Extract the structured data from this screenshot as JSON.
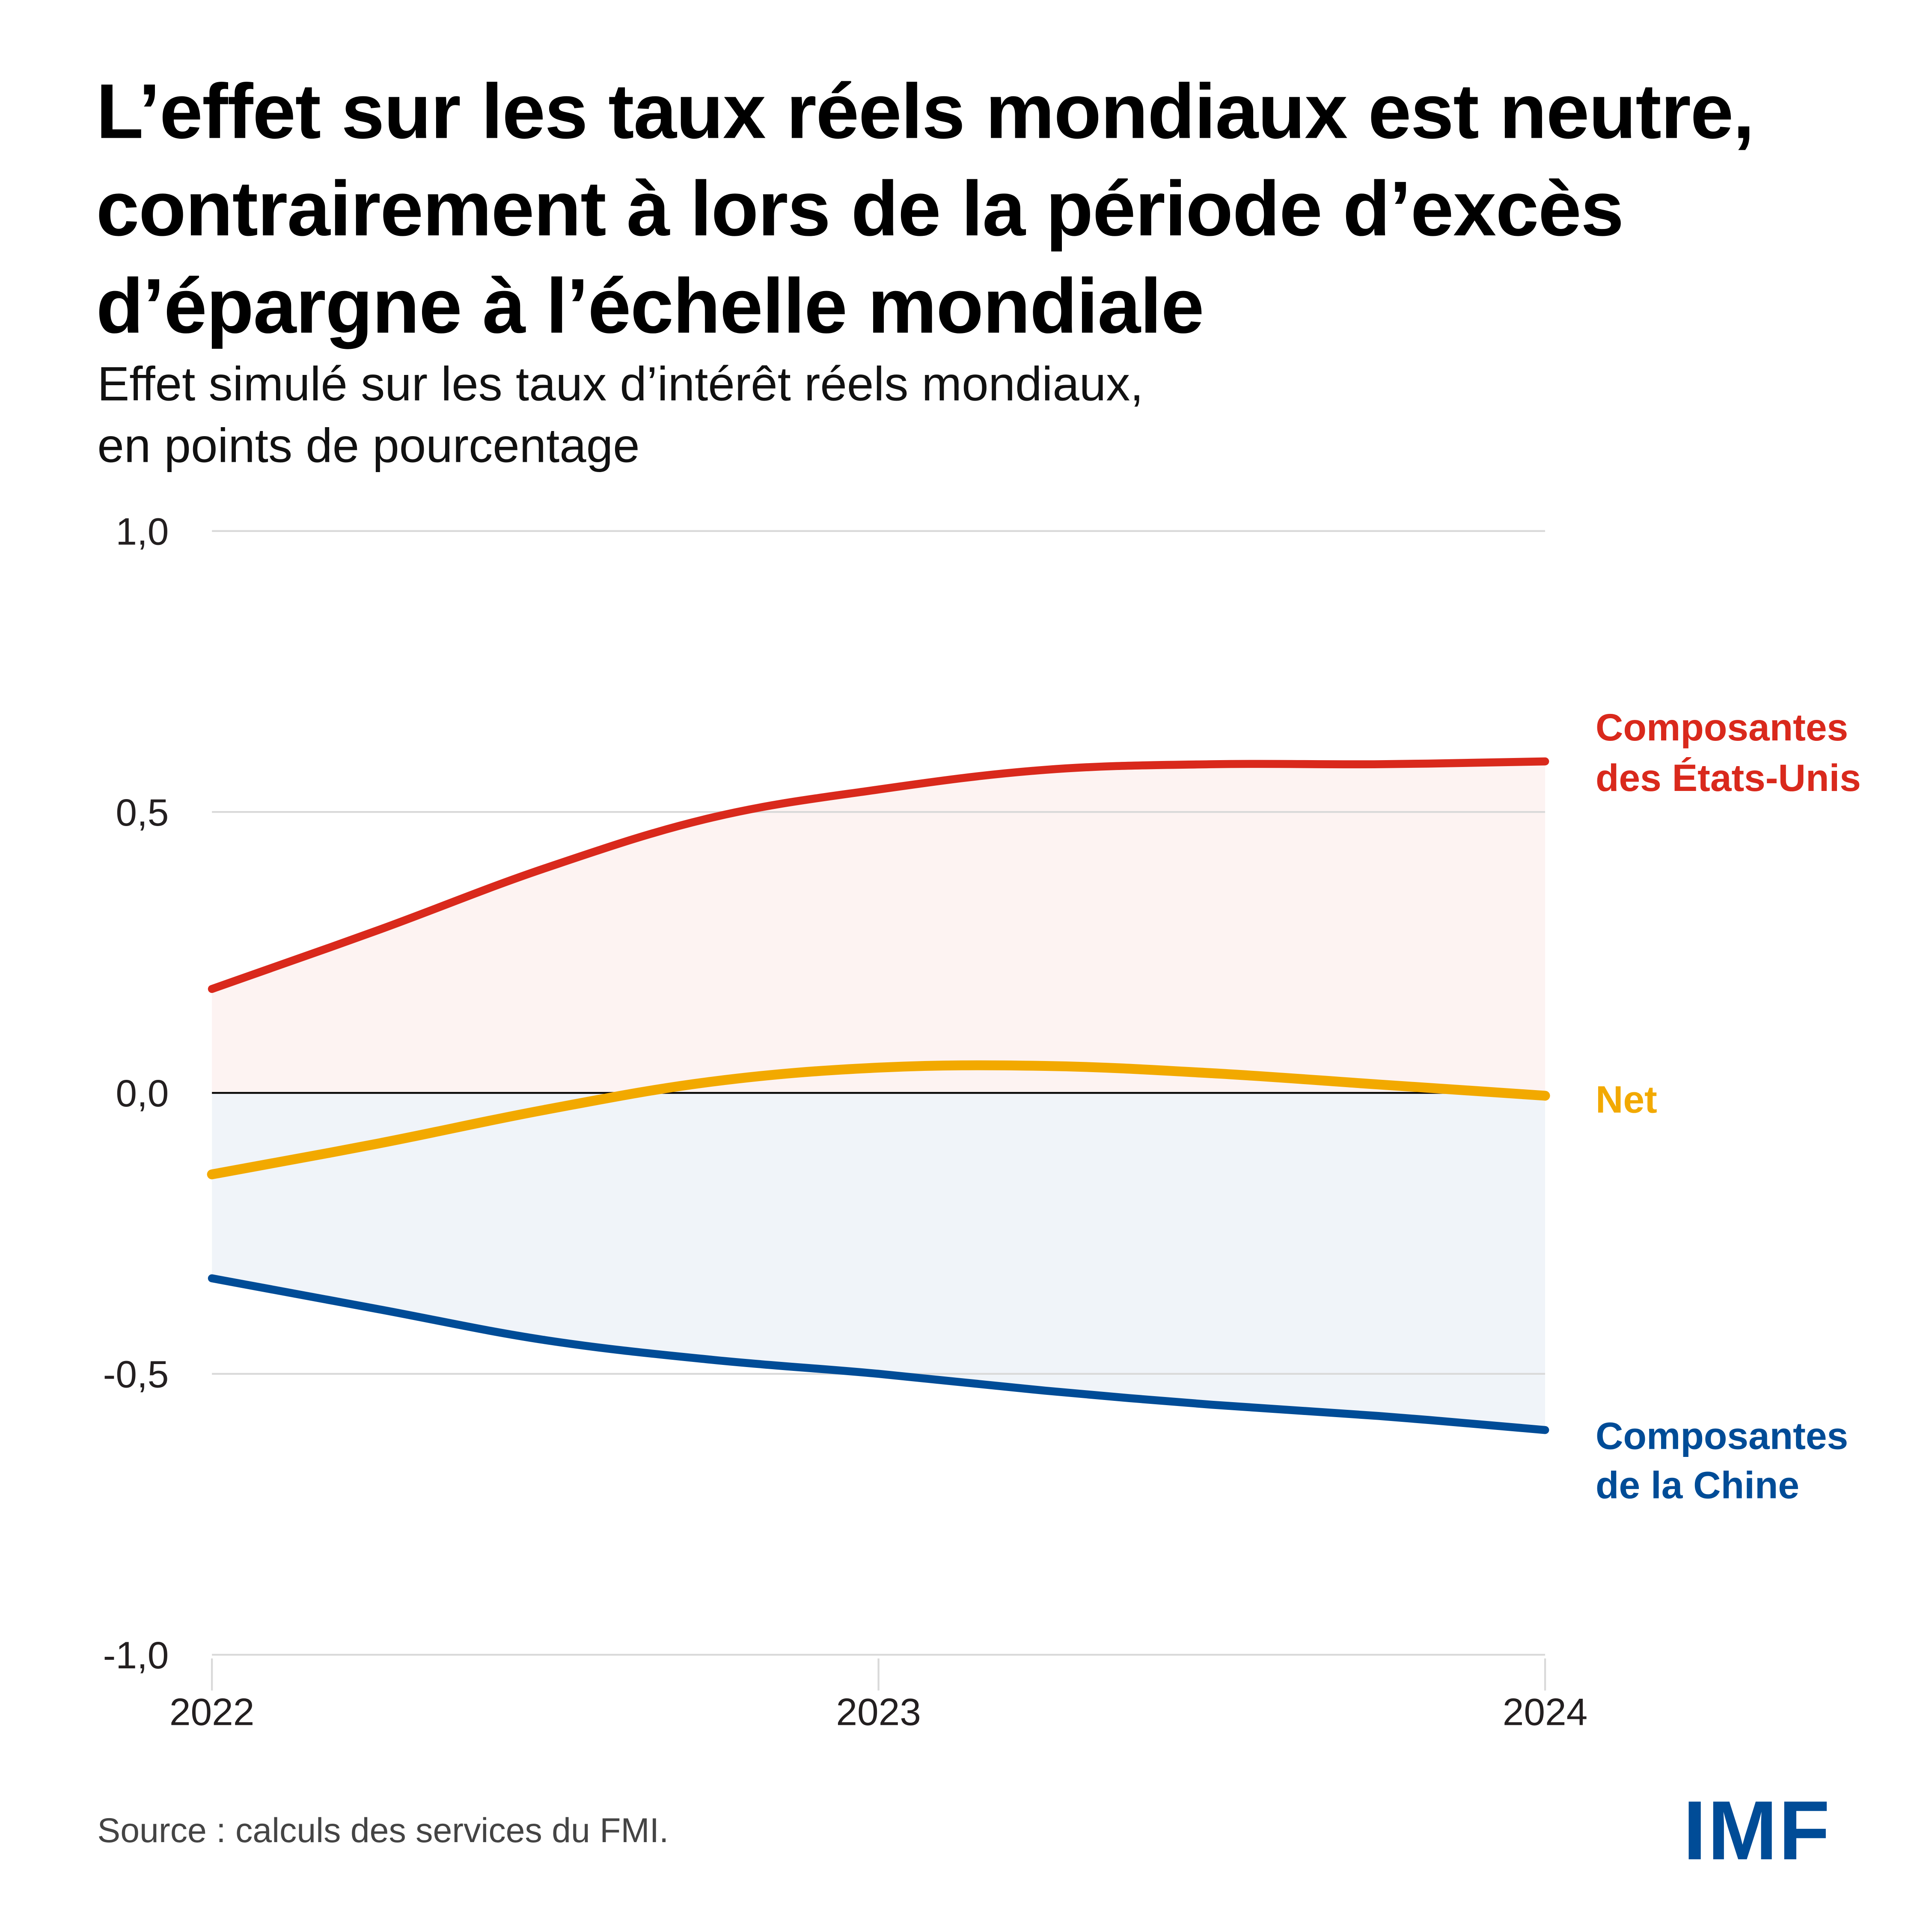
{
  "header": {
    "title_lines": [
      "L’effet sur les taux réels mondiaux est neutre,",
      "contrairement à lors de la période d’excès",
      "d’épargne à l’échelle mondiale"
    ],
    "subtitle_lines": [
      "Effet simulé sur les taux d’intérêt réels mondiaux,",
      "en points de pourcentage"
    ]
  },
  "footer": {
    "source": "Source : calculs des services du FMI.",
    "logo": "IMF"
  },
  "colors": {
    "us": "#d9291c",
    "net": "#f2a900",
    "china": "#004c97",
    "us_fill": "#fdf3f2",
    "china_fill": "#f0f4f9",
    "grid": "#d9d9d9",
    "zero_line": "#000000",
    "logo": "#004c97"
  },
  "chart_data": {
    "type": "area",
    "title": "L’effet sur les taux réels mondiaux est neutre, contrairement à lors de la période d’excès d’épargne à l’échelle mondiale",
    "subtitle": "Effet simulé sur les taux d’intérêt réels mondiaux, en points de pourcentage",
    "xlabel": "",
    "ylabel": "en points de pourcentage",
    "xlim": [
      2022,
      2024
    ],
    "ylim": [
      -1.0,
      1.0
    ],
    "x_ticks": [
      2022,
      2023,
      2024
    ],
    "x_tick_labels": [
      "2022",
      "2023",
      "2024"
    ],
    "y_ticks": [
      1.0,
      0.5,
      0.0,
      -0.5,
      -1.0
    ],
    "y_tick_labels": [
      "1,0",
      "0,5",
      "0,0",
      "-0,5",
      "-1,0"
    ],
    "grid": true,
    "legend": "inline-right",
    "x": [
      2022.0,
      2022.25,
      2022.5,
      2022.75,
      2023.0,
      2023.25,
      2023.5,
      2023.75,
      2024.0
    ],
    "series": [
      {
        "name": "Composantes des États-Unis",
        "label_lines": [
          "Composantes",
          "des États-Unis"
        ],
        "color_key": "us",
        "fill": "to-zero",
        "values": [
          0.185,
          0.29,
          0.4,
          0.49,
          0.54,
          0.575,
          0.585,
          0.585,
          0.59
        ]
      },
      {
        "name": "Net",
        "label_lines": [
          "Net"
        ],
        "color_key": "net",
        "fill": "none",
        "values": [
          -0.145,
          -0.09,
          -0.03,
          0.02,
          0.045,
          0.048,
          0.035,
          0.015,
          -0.005
        ]
      },
      {
        "name": "Composantes de la Chine",
        "label_lines": [
          "Composantes",
          "de la Chine"
        ],
        "color_key": "china",
        "fill": "to-zero",
        "values": [
          -0.33,
          -0.385,
          -0.44,
          -0.475,
          -0.5,
          -0.53,
          -0.555,
          -0.575,
          -0.6
        ]
      }
    ]
  }
}
